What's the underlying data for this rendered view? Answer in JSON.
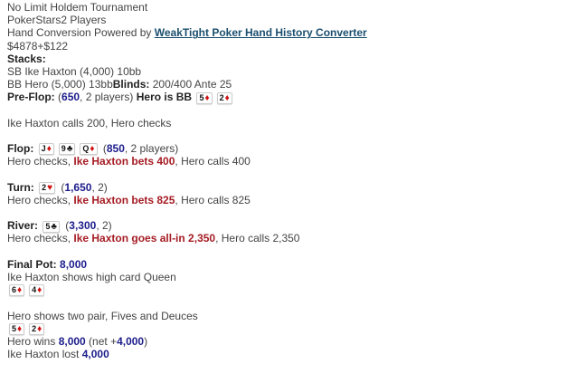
{
  "suit_symbols": {
    "diamond-icon": "♦",
    "club-icon": "♣",
    "heart-icon": "♥",
    "spade-icon": "♠"
  },
  "colors": {
    "pot_amount": "#1c1c8c",
    "villain_action": "#a51c24",
    "link": "#1a4e6e"
  },
  "lines": [
    [
      {
        "t": "No Limit Holdem Tournament"
      }
    ],
    [
      {
        "t": "PokerStars2 Players"
      }
    ],
    [
      {
        "t": "Hand Conversion Powered by "
      },
      {
        "t": "WeakTight Poker Hand History Converter",
        "s": "link"
      }
    ],
    [
      {
        "t": "$4878+$122"
      }
    ],
    [
      {
        "t": "Stacks:",
        "s": "b"
      }
    ],
    [
      {
        "t": "SB Ike Haxton (4,000) 10bb"
      }
    ],
    [
      {
        "t": "BB Hero (5,000) 13bb"
      },
      {
        "t": "Blinds:",
        "s": "b"
      },
      {
        "t": " 200/400 Ante 25"
      }
    ],
    [
      {
        "t": "Pre-Flop:",
        "s": "b"
      },
      {
        "t": " ("
      },
      {
        "t": "650",
        "s": "blue"
      },
      {
        "t": ", 2 players) "
      },
      {
        "t": "Hero is BB",
        "s": "b"
      },
      {
        "t": " "
      },
      {
        "rank": "5",
        "suit": "diamond-icon"
      },
      {
        "rank": "2",
        "suit": "diamond-icon"
      }
    ],
    null,
    [
      {
        "t": "Ike Haxton calls 200, Hero checks"
      }
    ],
    null,
    [
      {
        "t": "Flop:",
        "s": "b"
      },
      {
        "t": " "
      },
      {
        "rank": "J",
        "suit": "diamond-icon"
      },
      {
        "rank": "9",
        "suit": "club-icon"
      },
      {
        "rank": "Q",
        "suit": "diamond-icon"
      },
      {
        "t": " ("
      },
      {
        "t": "850",
        "s": "blue"
      },
      {
        "t": ", 2 players)"
      }
    ],
    [
      {
        "t": "Hero checks, "
      },
      {
        "t": "Ike Haxton bets 400",
        "s": "red"
      },
      {
        "t": ", Hero calls 400"
      }
    ],
    null,
    [
      {
        "t": "Turn:",
        "s": "b"
      },
      {
        "t": " "
      },
      {
        "rank": "2",
        "suit": "heart-icon"
      },
      {
        "t": " ("
      },
      {
        "t": "1,650",
        "s": "blue"
      },
      {
        "t": ", 2)"
      }
    ],
    [
      {
        "t": "Hero checks, "
      },
      {
        "t": "Ike Haxton bets 825",
        "s": "red"
      },
      {
        "t": ", Hero calls 825"
      }
    ],
    null,
    [
      {
        "t": "River:",
        "s": "b"
      },
      {
        "t": " "
      },
      {
        "rank": "5",
        "suit": "club-icon"
      },
      {
        "t": " ("
      },
      {
        "t": "3,300",
        "s": "blue"
      },
      {
        "t": ", 2)"
      }
    ],
    [
      {
        "t": "Hero checks, "
      },
      {
        "t": "Ike Haxton goes all-in 2,350",
        "s": "red"
      },
      {
        "t": ", Hero calls 2,350"
      }
    ],
    null,
    [
      {
        "t": "Final Pot:",
        "s": "b"
      },
      {
        "t": " "
      },
      {
        "t": "8,000",
        "s": "blue"
      }
    ],
    [
      {
        "t": "Ike Haxton shows high card Queen"
      }
    ],
    [
      {
        "rank": "6",
        "suit": "diamond-icon"
      },
      {
        "rank": "4",
        "suit": "diamond-icon"
      }
    ],
    null,
    [
      {
        "t": "Hero shows two pair, Fives and Deuces"
      }
    ],
    [
      {
        "rank": "5",
        "suit": "diamond-icon"
      },
      {
        "rank": "2",
        "suit": "diamond-icon"
      }
    ],
    [
      {
        "t": "Hero wins "
      },
      {
        "t": "8,000",
        "s": "blue"
      },
      {
        "t": " (net +"
      },
      {
        "t": "4,000",
        "s": "blue"
      },
      {
        "t": ")"
      }
    ],
    [
      {
        "t": "Ike Haxton lost "
      },
      {
        "t": "4,000",
        "s": "blue"
      }
    ]
  ]
}
